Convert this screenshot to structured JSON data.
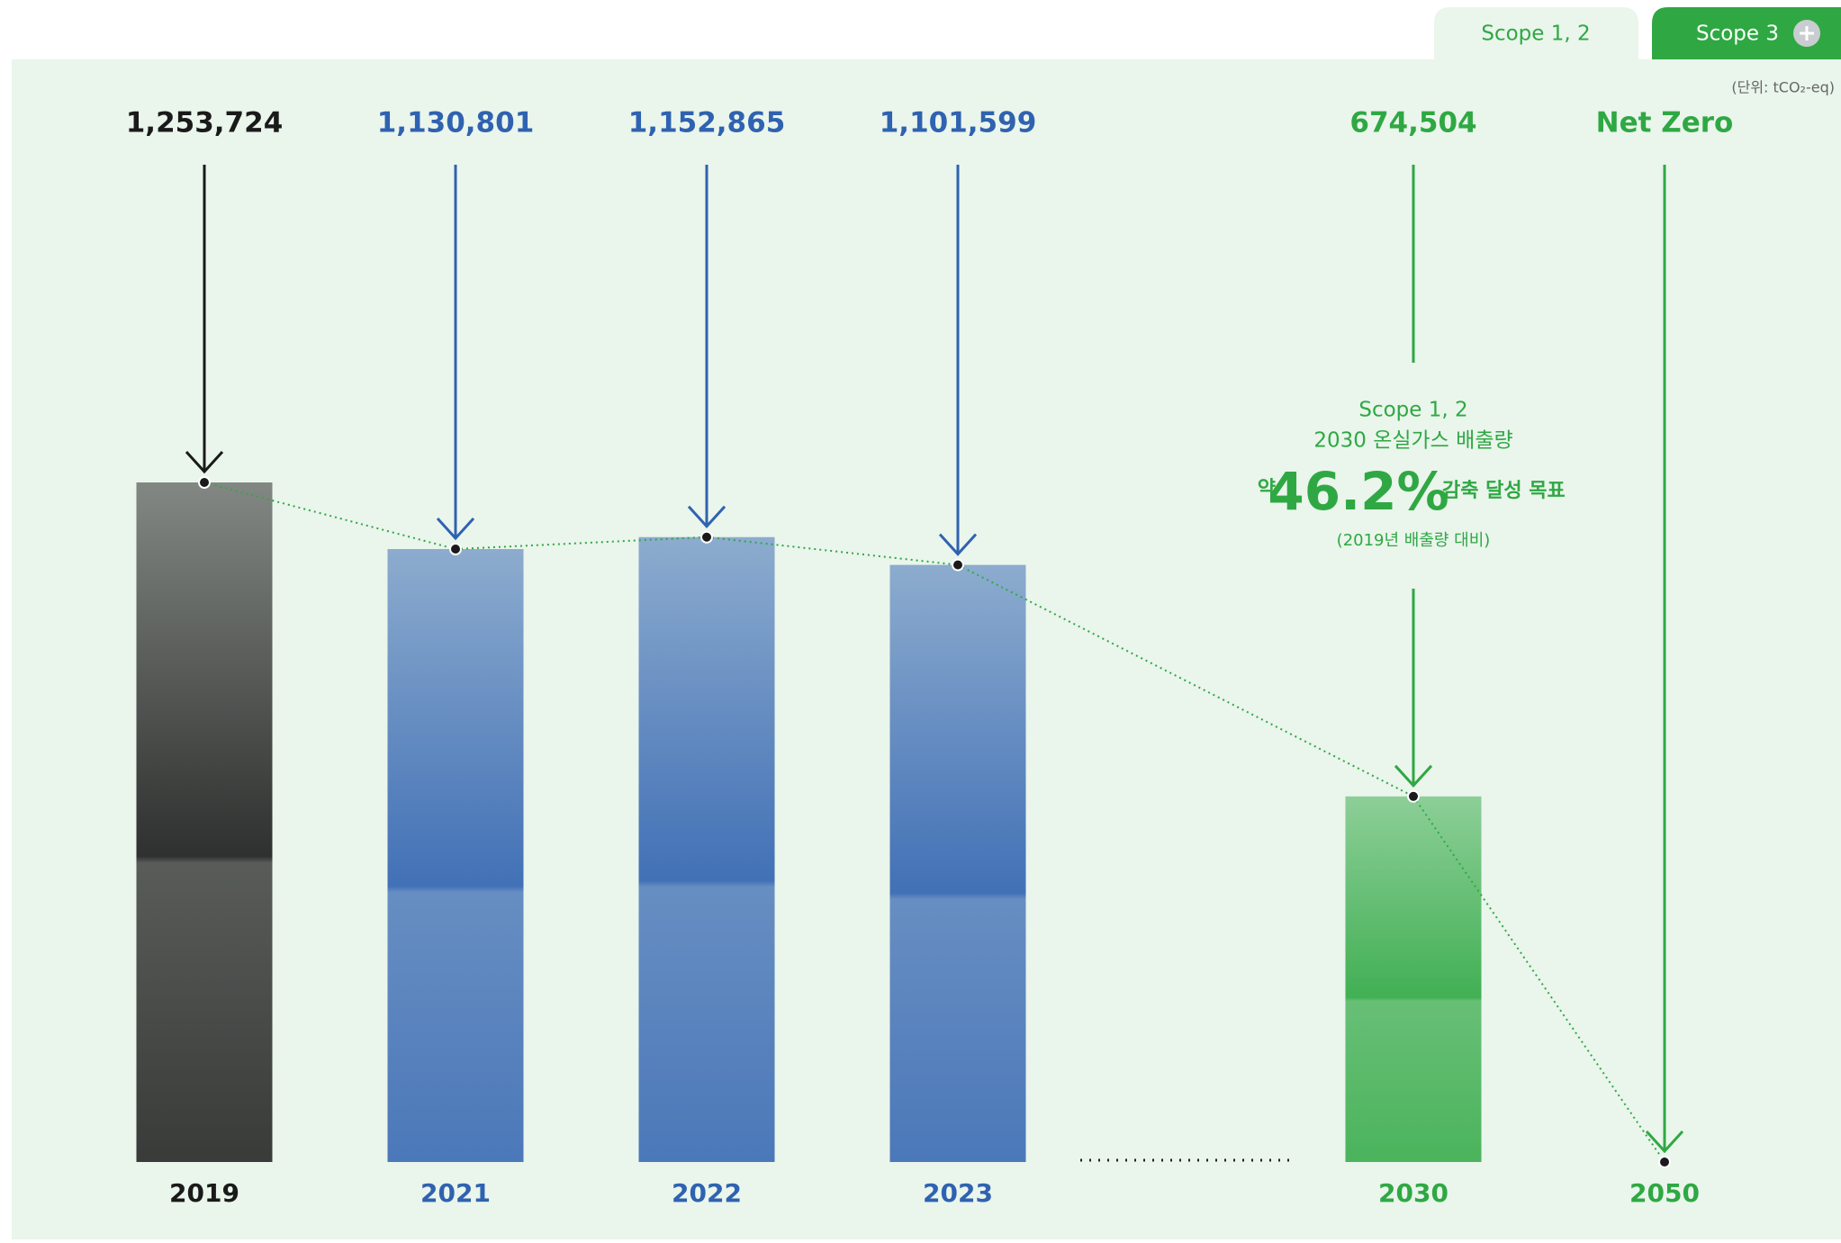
{
  "tabs": [
    "Scope 1, 2",
    "Scope 3"
  ],
  "unit": "(단위: tCO₂-eq)",
  "chart_data": {
    "type": "bar",
    "categories": [
      "2019",
      "2021",
      "2022",
      "2023",
      "2030",
      "2050"
    ],
    "values": [
      1253724,
      1130801,
      1152865,
      1101599,
      674504,
      0
    ],
    "value_labels": [
      "1,253,724",
      "1,130,801",
      "1,152,865",
      "1,101,599",
      "674,504",
      "Net Zero"
    ],
    "colors": [
      "#1a1a1a",
      "#2f62b0",
      "#2f62b0",
      "#2f62b0",
      "#2fa843",
      "#2fa843"
    ],
    "annotation": {
      "line1": "Scope 1, 2",
      "line2": "2030 온실가스 배출량",
      "prefix": "약",
      "highlight": "46.2%",
      "suffix": "감축 달성 목표",
      "note": "(2019년 배출량 대비)"
    }
  }
}
